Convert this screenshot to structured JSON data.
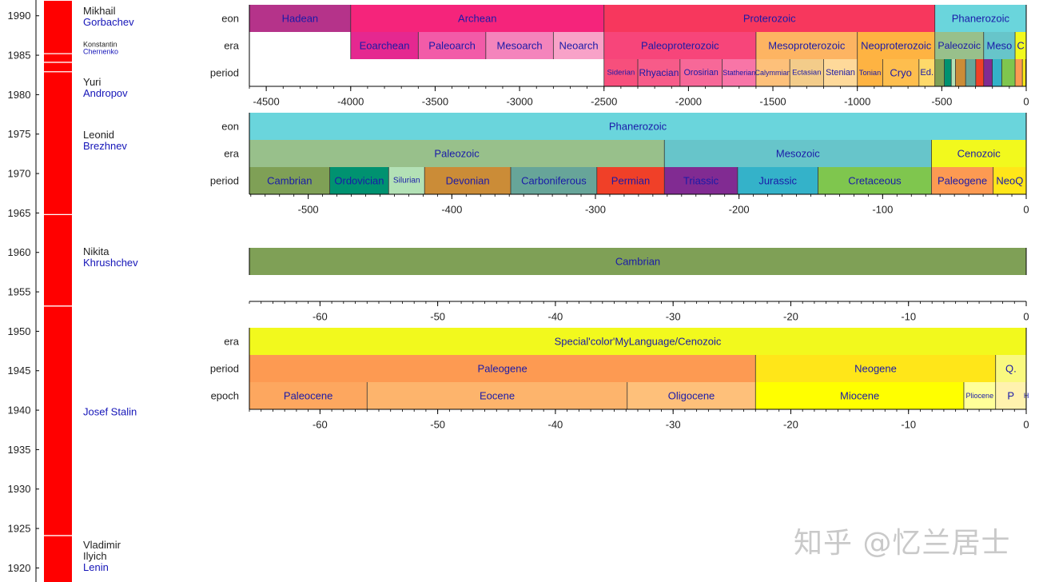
{
  "watermark": "知乎 @忆兰居士",
  "chart_data": [
    {
      "type": "timeline",
      "name": "soviet-leaders",
      "ylim": [
        1917,
        1992
      ],
      "yticks": [
        1990,
        1985,
        1980,
        1975,
        1970,
        1965,
        1960,
        1955,
        1950,
        1945,
        1940,
        1935,
        1930,
        1925,
        1920
      ],
      "bar_color": "#ff0000",
      "divider_years": [
        1985.2,
        1984.1,
        1982.9,
        1964.8,
        1953.2,
        1924.1
      ],
      "leaders": [
        {
          "first": "Mikhail",
          "last": "Gorbachev",
          "start": 1985.2,
          "end": 1991.9,
          "label_year": 1989.9,
          "small": false
        },
        {
          "first": "Konstantin",
          "last": "Chernenko",
          "start": 1984.1,
          "end": 1985.2,
          "label_year": 1985.9,
          "small": true
        },
        {
          "first": "Yuri",
          "last": "Andropov",
          "start": 1982.9,
          "end": 1984.1,
          "label_year": 1980.9,
          "small": false
        },
        {
          "first": "Leonid",
          "last": "Brezhnev",
          "start": 1964.8,
          "end": 1982.9,
          "label_year": 1974.2,
          "small": false
        },
        {
          "first": "Nikita",
          "last": "Khrushchev",
          "start": 1953.2,
          "end": 1964.8,
          "label_year": 1959.4,
          "small": false
        },
        {
          "first": "",
          "last": "Josef Stalin",
          "start": 1924.1,
          "end": 1953.2,
          "label_year": 1939.8,
          "small": false
        },
        {
          "first": "Vladimir",
          "last": "Lenin",
          "middle": "Ilyich",
          "start": 1917.0,
          "end": 1924.1,
          "label_year": 1922.2,
          "small": false
        }
      ]
    },
    {
      "type": "geologic-timescale",
      "name": "full-timescale",
      "xlim": [
        -4600,
        0
      ],
      "xticks": [
        -4500,
        -4000,
        -3500,
        -3000,
        -2500,
        -2000,
        -1500,
        -1000,
        -500,
        0
      ],
      "minor_step": 100,
      "rows": [
        {
          "label": "eon",
          "blocks": [
            {
              "name": "Hadean",
              "start": -4600,
              "end": -4000,
              "color": "#b5338a"
            },
            {
              "name": "Archean",
              "start": -4000,
              "end": -2500,
              "color": "#f5247b"
            },
            {
              "name": "Proterozoic",
              "start": -2500,
              "end": -541,
              "color": "#f7375d"
            },
            {
              "name": "Phanerozoic",
              "start": -541,
              "end": 0,
              "color": "#6ad5dc"
            }
          ]
        },
        {
          "label": "era",
          "blocks": [
            {
              "name": "Eoarchean",
              "start": -4000,
              "end": -3600,
              "color": "#e52890"
            },
            {
              "name": "Paleoarch",
              "start": -3600,
              "end": -3200,
              "color": "#f25ba8"
            },
            {
              "name": "Mesoarch",
              "start": -3200,
              "end": -2800,
              "color": "#f484bc"
            },
            {
              "name": "Neoarch",
              "start": -2800,
              "end": -2500,
              "color": "#f8a2c8"
            },
            {
              "name": "Paleoproterozoic",
              "start": -2500,
              "end": -1600,
              "color": "#f7457a"
            },
            {
              "name": "Mesoproterozoic",
              "start": -1600,
              "end": -1000,
              "color": "#fdb462"
            },
            {
              "name": "Neoproterozoic",
              "start": -1000,
              "end": -541,
              "color": "#feb342"
            },
            {
              "name": "Paleozoic",
              "start": -541,
              "end": -252,
              "color": "#98c08b"
            },
            {
              "name": "Meso",
              "start": -252,
              "end": -66,
              "color": "#67c5ca"
            },
            {
              "name": "C",
              "start": -66,
              "end": 0,
              "color": "#f2f91d"
            }
          ]
        },
        {
          "label": "period",
          "blocks": [
            {
              "name": "Siderian",
              "start": -2500,
              "end": -2300,
              "color": "#f74f7c"
            },
            {
              "name": "Rhyacian",
              "start": -2300,
              "end": -2050,
              "color": "#f75b89"
            },
            {
              "name": "Orosirian",
              "start": -2050,
              "end": -1800,
              "color": "#f76898"
            },
            {
              "name": "Statherian",
              "start": -1800,
              "end": -1600,
              "color": "#f875a7"
            },
            {
              "name": "Calymmian",
              "start": -1600,
              "end": -1400,
              "color": "#fdc07a"
            },
            {
              "name": "Ectasian",
              "start": -1400,
              "end": -1200,
              "color": "#f3cc8a"
            },
            {
              "name": "Stenian",
              "start": -1200,
              "end": -1000,
              "color": "#fed99a"
            },
            {
              "name": "Tonian",
              "start": -1000,
              "end": -850,
              "color": "#feb342"
            },
            {
              "name": "Cryo",
              "start": -850,
              "end": -635,
              "color": "#febe4e"
            },
            {
              "name": "Ed.",
              "start": -635,
              "end": -541,
              "color": "#fed96a"
            },
            {
              "name": "",
              "start": -541,
              "end": -485,
              "color": "#7fa056"
            },
            {
              "name": "",
              "start": -485,
              "end": -444,
              "color": "#009270"
            },
            {
              "name": "",
              "start": -444,
              "end": -419,
              "color": "#b3e1b6"
            },
            {
              "name": "",
              "start": -419,
              "end": -359,
              "color": "#cb8c37"
            },
            {
              "name": "",
              "start": -359,
              "end": -299,
              "color": "#67a599"
            },
            {
              "name": "",
              "start": -299,
              "end": -252,
              "color": "#f04028"
            },
            {
              "name": "",
              "start": -252,
              "end": -201,
              "color": "#812b92"
            },
            {
              "name": "",
              "start": -201,
              "end": -145,
              "color": "#34b2c9"
            },
            {
              "name": "",
              "start": -145,
              "end": -66,
              "color": "#7fc64e"
            },
            {
              "name": "",
              "start": -66,
              "end": -23,
              "color": "#fd9a52"
            },
            {
              "name": "",
              "start": -23,
              "end": -2.6,
              "color": "#ffe619"
            },
            {
              "name": "",
              "start": -2.6,
              "end": 0,
              "color": "#f9f97f"
            }
          ]
        }
      ]
    },
    {
      "type": "geologic-timescale",
      "name": "phanerozoic",
      "xlim": [
        -541,
        0
      ],
      "xticks": [
        -500,
        -400,
        -300,
        -200,
        -100,
        0
      ],
      "minor_step": 10,
      "rows": [
        {
          "label": "eon",
          "blocks": [
            {
              "name": "Phanerozoic",
              "start": -541,
              "end": 0,
              "color": "#6ad5dc"
            }
          ]
        },
        {
          "label": "era",
          "blocks": [
            {
              "name": "Paleozoic",
              "start": -541,
              "end": -252,
              "color": "#98c08b"
            },
            {
              "name": "Mesozoic",
              "start": -252,
              "end": -66,
              "color": "#67c5ca"
            },
            {
              "name": "Cenozoic",
              "start": -66,
              "end": 0,
              "color": "#f2f91d"
            }
          ]
        },
        {
          "label": "period",
          "blocks": [
            {
              "name": "Cambrian",
              "start": -541,
              "end": -485,
              "color": "#7fa056"
            },
            {
              "name": "Ordovician",
              "start": -485,
              "end": -444,
              "color": "#009270"
            },
            {
              "name": "Silurian",
              "start": -444,
              "end": -419,
              "color": "#b3e1b6"
            },
            {
              "name": "Devonian",
              "start": -419,
              "end": -359,
              "color": "#cb8c37"
            },
            {
              "name": "Carboniferous",
              "start": -359,
              "end": -299,
              "color": "#67a599"
            },
            {
              "name": "Permian",
              "start": -299,
              "end": -252,
              "color": "#f04028"
            },
            {
              "name": "Triassic",
              "start": -252,
              "end": -201,
              "color": "#812b92"
            },
            {
              "name": "Jurassic",
              "start": -201,
              "end": -145,
              "color": "#34b2c9"
            },
            {
              "name": "Cretaceous",
              "start": -145,
              "end": -66,
              "color": "#7fc64e"
            },
            {
              "name": "Paleogene",
              "start": -66,
              "end": -23,
              "color": "#fd9a52"
            },
            {
              "name": "NeoQ",
              "start": -23,
              "end": 0,
              "color": "#ffe619"
            }
          ]
        }
      ]
    },
    {
      "type": "geologic-timescale",
      "name": "single-period",
      "xlim": [
        -66,
        0
      ],
      "xticks": [
        -60,
        -50,
        -40,
        -30,
        -20,
        -10,
        0
      ],
      "minor_step": 1,
      "rows": [
        {
          "label": "",
          "blocks": [
            {
              "name": "Cambrian",
              "start": -66,
              "end": 0,
              "color": "#7fa056"
            }
          ]
        }
      ]
    },
    {
      "type": "geologic-timescale",
      "name": "cenozoic",
      "xlim": [
        -66,
        0
      ],
      "xticks": [
        -60,
        -50,
        -40,
        -30,
        -20,
        -10,
        0
      ],
      "minor_step": 1,
      "rows": [
        {
          "label": "era",
          "blocks": [
            {
              "name": "Special'color'MyLanguage/Cenozoic",
              "start": -66,
              "end": 0,
              "color": "#f2f91d"
            }
          ]
        },
        {
          "label": "period",
          "blocks": [
            {
              "name": "Paleogene",
              "start": -66,
              "end": -23,
              "color": "#fd9a52"
            },
            {
              "name": "Neogene",
              "start": -23,
              "end": -2.6,
              "color": "#ffe619"
            },
            {
              "name": "Q.",
              "start": -2.6,
              "end": 0,
              "color": "#f9f97f"
            }
          ]
        },
        {
          "label": "epoch",
          "blocks": [
            {
              "name": "Paleocene",
              "start": -66,
              "end": -56,
              "color": "#fda75f"
            },
            {
              "name": "Eocene",
              "start": -56,
              "end": -33.9,
              "color": "#fdb46c"
            },
            {
              "name": "Oligocene",
              "start": -33.9,
              "end": -23,
              "color": "#fec07a"
            },
            {
              "name": "Miocene",
              "start": -23,
              "end": -5.3,
              "color": "#ffff00"
            },
            {
              "name": "Pliocene",
              "start": -5.3,
              "end": -2.6,
              "color": "#ffff99"
            },
            {
              "name": "P",
              "start": -2.6,
              "end": -0.012,
              "color": "#fff2ae"
            },
            {
              "name": "H",
              "start": -0.012,
              "end": 0,
              "color": "#fef2e0"
            }
          ]
        }
      ]
    }
  ]
}
